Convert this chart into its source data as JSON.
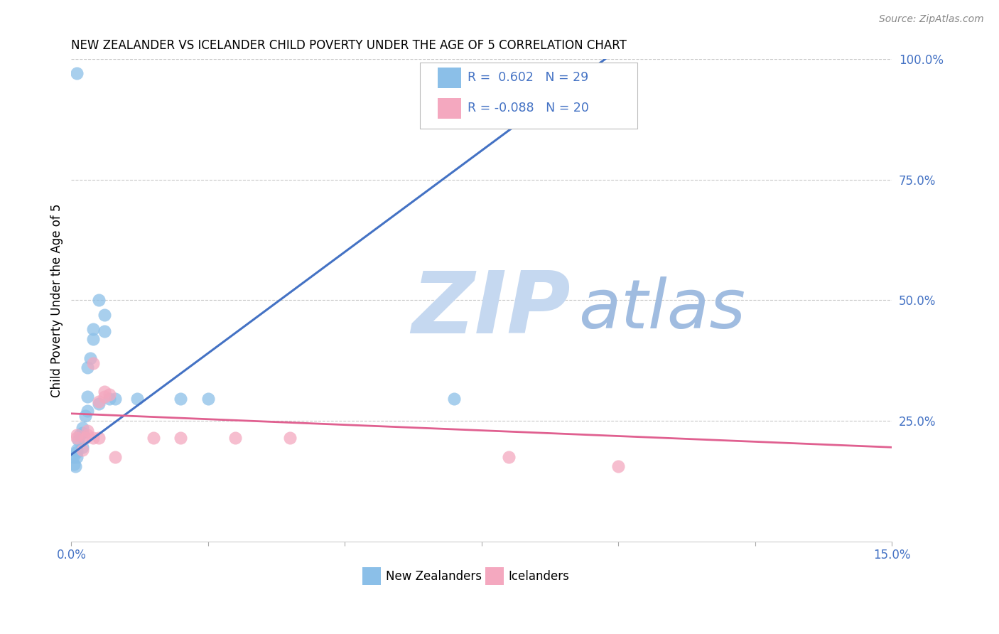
{
  "title": "NEW ZEALANDER VS ICELANDER CHILD POVERTY UNDER THE AGE OF 5 CORRELATION CHART",
  "source": "Source: ZipAtlas.com",
  "ylabel": "Child Poverty Under the Age of 5",
  "xlim": [
    0.0,
    0.15
  ],
  "ylim": [
    0.0,
    1.0
  ],
  "xtick_positions": [
    0.0,
    0.025,
    0.05,
    0.075,
    0.1,
    0.125,
    0.15
  ],
  "xtick_labels": [
    "0.0%",
    "",
    "",
    "",
    "",
    "",
    "15.0%"
  ],
  "ytick_positions": [
    0.0,
    0.25,
    0.5,
    0.75,
    1.0
  ],
  "ytick_labels": [
    "",
    "25.0%",
    "50.0%",
    "75.0%",
    "100.0%"
  ],
  "nz_R": 0.602,
  "nz_N": 29,
  "ice_R": -0.088,
  "ice_N": 20,
  "nz_color": "#8bbfe8",
  "ice_color": "#f4a8bf",
  "nz_line_color": "#4472c4",
  "ice_line_color": "#e06090",
  "text_color": "#4472c4",
  "watermark_zip": "ZIP",
  "watermark_atlas": "atlas",
  "watermark_color_zip": "#c5d8f0",
  "watermark_color_atlas": "#a0bce0",
  "nz_x": [
    0.0003,
    0.0005,
    0.0007,
    0.001,
    0.001,
    0.001,
    0.0012,
    0.0015,
    0.002,
    0.002,
    0.002,
    0.0025,
    0.003,
    0.003,
    0.003,
    0.0035,
    0.004,
    0.004,
    0.005,
    0.005,
    0.006,
    0.006,
    0.007,
    0.008,
    0.012,
    0.02,
    0.025,
    0.07,
    0.001
  ],
  "nz_y": [
    0.175,
    0.16,
    0.155,
    0.175,
    0.185,
    0.19,
    0.21,
    0.22,
    0.225,
    0.235,
    0.195,
    0.26,
    0.27,
    0.3,
    0.36,
    0.38,
    0.42,
    0.44,
    0.5,
    0.285,
    0.435,
    0.47,
    0.295,
    0.295,
    0.295,
    0.295,
    0.295,
    0.295,
    0.97
  ],
  "ice_x": [
    0.001,
    0.001,
    0.002,
    0.0025,
    0.003,
    0.003,
    0.004,
    0.004,
    0.005,
    0.005,
    0.006,
    0.006,
    0.007,
    0.008,
    0.015,
    0.02,
    0.03,
    0.04,
    0.08,
    0.1
  ],
  "ice_y": [
    0.215,
    0.22,
    0.19,
    0.215,
    0.22,
    0.23,
    0.215,
    0.37,
    0.215,
    0.29,
    0.3,
    0.31,
    0.305,
    0.175,
    0.215,
    0.215,
    0.215,
    0.215,
    0.175,
    0.155
  ]
}
